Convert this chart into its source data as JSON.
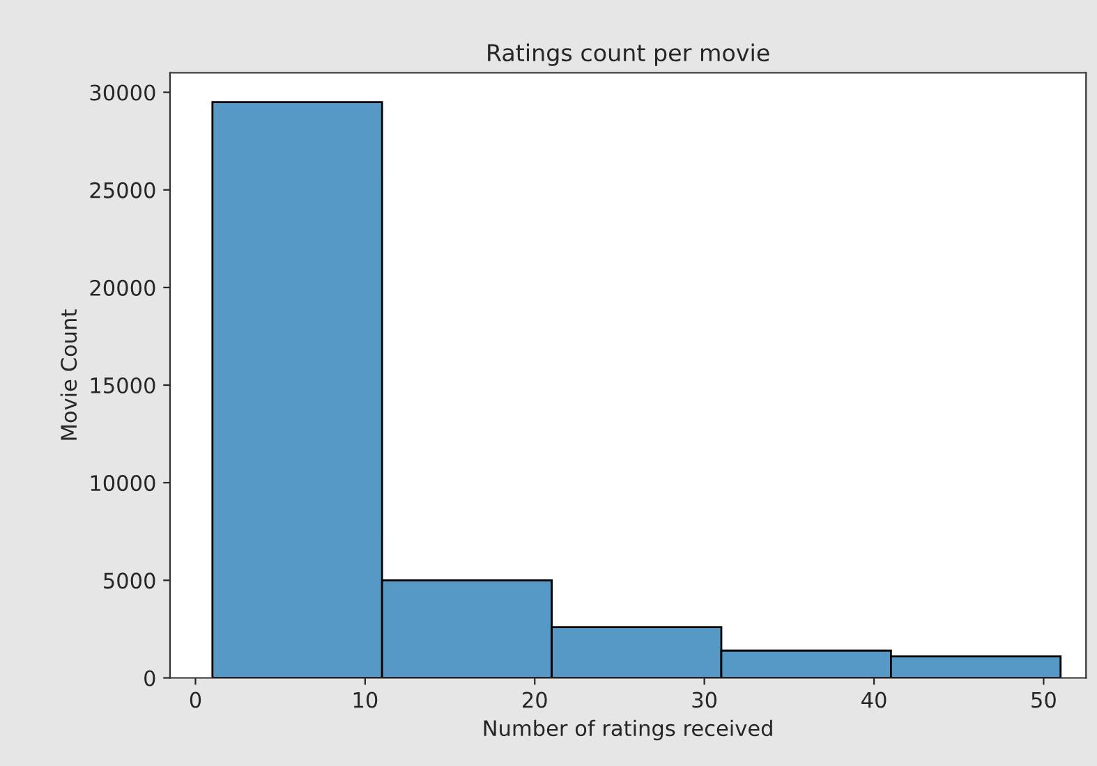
{
  "chart_data": {
    "type": "histogram",
    "title": "Ratings count per movie",
    "xlabel": "Number of ratings received",
    "ylabel": "Movie Count",
    "bins": [
      1,
      11,
      21,
      31,
      41,
      51
    ],
    "values": [
      29500,
      5000,
      2600,
      1400,
      1100
    ],
    "color": "#5799c6",
    "xlim": [
      -1.5,
      52.5
    ],
    "xticks": [
      0,
      10,
      20,
      30,
      40,
      50
    ],
    "ylim": [
      0,
      31000
    ],
    "yticks": [
      0,
      5000,
      10000,
      15000,
      20000,
      25000,
      30000
    ],
    "grid": false
  }
}
